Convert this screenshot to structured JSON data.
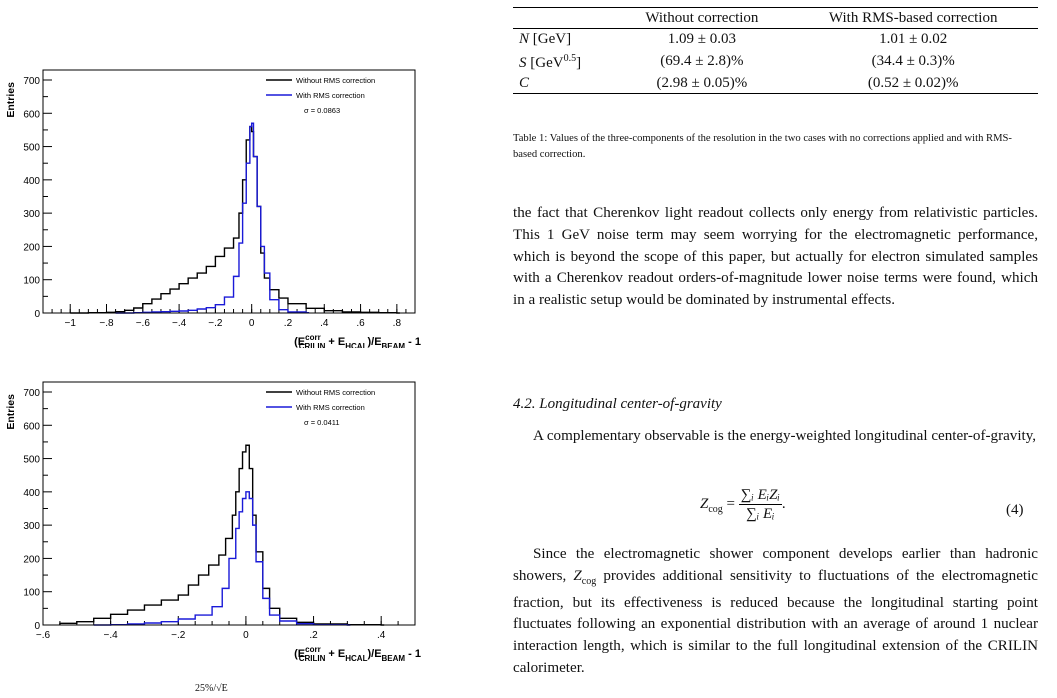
{
  "plots": [
    {
      "ylabel": "Entries",
      "xlabel_parts": [
        "(E",
        "corr",
        "CRILIN",
        " + E",
        "HCAL",
        ")/E",
        "BEAM",
        " - 1"
      ],
      "legend": [
        "Without RMS correction",
        "With RMS correction",
        "σ = 0.0863"
      ],
      "colors": {
        "without": "#000000",
        "with": "#1a1ad8"
      }
    },
    {
      "ylabel": "Entries",
      "xlabel_parts": [
        "(E",
        "corr",
        "CRILIN",
        " + E",
        "HCAL",
        ")/E",
        "BEAM",
        " - 1"
      ],
      "legend": [
        "Without RMS correction",
        "With RMS correction",
        "σ = 0.0411"
      ],
      "colors": {
        "without": "#000000",
        "with": "#1a1ad8"
      }
    }
  ],
  "chart_data": [
    {
      "type": "histogram",
      "xlabel": "(E^corr_CRILIN + E_HCAL)/E_BEAM - 1",
      "ylabel": "Entries",
      "xlim": [
        -1.15,
        0.9
      ],
      "ylim": [
        0,
        730
      ],
      "x_ticks": [
        -1,
        -0.8,
        -0.6,
        -0.4,
        -0.2,
        0,
        0.2,
        0.4,
        0.6,
        0.8
      ],
      "y_ticks": [
        0,
        100,
        200,
        300,
        400,
        500,
        600,
        700
      ],
      "legend": "top-right",
      "annotation": "σ = 0.0863",
      "series": [
        {
          "name": "Without RMS correction",
          "x": [
            -1.0,
            -0.9,
            -0.8,
            -0.75,
            -0.7,
            -0.65,
            -0.6,
            -0.55,
            -0.5,
            -0.45,
            -0.4,
            -0.35,
            -0.3,
            -0.25,
            -0.2,
            -0.15,
            -0.1,
            -0.07,
            -0.05,
            -0.03,
            -0.01,
            0.0,
            0.01,
            0.03,
            0.05,
            0.07,
            0.1,
            0.15,
            0.2,
            0.3,
            0.4,
            0.5,
            0.6,
            0.7,
            0.8
          ],
          "y": [
            0,
            1,
            2,
            4,
            8,
            15,
            28,
            42,
            58,
            72,
            88,
            105,
            120,
            140,
            170,
            195,
            225,
            300,
            400,
            520,
            560,
            545,
            470,
            320,
            180,
            105,
            70,
            45,
            28,
            14,
            7,
            3,
            2,
            1,
            0
          ]
        },
        {
          "name": "With RMS correction",
          "x": [
            -0.75,
            -0.7,
            -0.65,
            -0.6,
            -0.55,
            -0.5,
            -0.45,
            -0.4,
            -0.35,
            -0.3,
            -0.25,
            -0.2,
            -0.15,
            -0.1,
            -0.07,
            -0.05,
            -0.03,
            -0.01,
            0.0,
            0.01,
            0.03,
            0.05,
            0.07,
            0.1,
            0.15,
            0.2,
            0.3
          ],
          "y": [
            0,
            0,
            1,
            2,
            3,
            4,
            5,
            6,
            8,
            12,
            16,
            25,
            48,
            110,
            210,
            330,
            450,
            560,
            570,
            470,
            320,
            200,
            120,
            40,
            10,
            3,
            1
          ]
        }
      ]
    },
    {
      "type": "histogram",
      "xlabel": "(E^corr_CRILIN + E_HCAL)/E_BEAM - 1",
      "ylabel": "Entries",
      "xlim": [
        -0.6,
        0.5
      ],
      "ylim": [
        0,
        730
      ],
      "x_ticks": [
        -0.6,
        -0.4,
        -0.2,
        0,
        0.2,
        0.4
      ],
      "y_ticks": [
        0,
        100,
        200,
        300,
        400,
        500,
        600,
        700
      ],
      "legend": "top-right",
      "annotation": "σ = 0.0411",
      "series": [
        {
          "name": "Without RMS correction",
          "x": [
            -0.55,
            -0.5,
            -0.45,
            -0.4,
            -0.35,
            -0.3,
            -0.25,
            -0.2,
            -0.17,
            -0.14,
            -0.11,
            -0.08,
            -0.06,
            -0.04,
            -0.03,
            -0.02,
            -0.01,
            0.0,
            0.01,
            0.02,
            0.03,
            0.05,
            0.07,
            0.1,
            0.15,
            0.2,
            0.3,
            0.4
          ],
          "y": [
            5,
            10,
            20,
            32,
            45,
            60,
            75,
            90,
            120,
            150,
            180,
            210,
            260,
            330,
            400,
            470,
            520,
            540,
            470,
            330,
            220,
            110,
            50,
            20,
            8,
            3,
            1,
            0
          ]
        },
        {
          "name": "With RMS correction",
          "x": [
            -0.45,
            -0.4,
            -0.35,
            -0.3,
            -0.25,
            -0.2,
            -0.15,
            -0.1,
            -0.07,
            -0.05,
            -0.03,
            -0.02,
            -0.01,
            0.0,
            0.01,
            0.02,
            0.03,
            0.05,
            0.07,
            0.1,
            0.15,
            0.2,
            0.3
          ],
          "y": [
            0,
            1,
            3,
            6,
            10,
            18,
            30,
            55,
            110,
            200,
            290,
            340,
            380,
            400,
            380,
            300,
            190,
            80,
            30,
            12,
            4,
            1,
            0
          ]
        }
      ]
    }
  ],
  "left_fragment": "25%/√E",
  "table": {
    "headers": [
      "",
      "Without correction",
      "With RMS-based correction"
    ],
    "rows": [
      {
        "sym": "N",
        "unit": "[GeV]",
        "sup": "",
        "unit_end": "",
        "without": "1.09 ± 0.03",
        "with": "1.01 ± 0.02"
      },
      {
        "sym": "S",
        "unit": "[GeV",
        "sup": "0.5",
        "unit_end": "]",
        "without": "(69.4 ± 2.8)%",
        "with": "(34.4 ± 0.3)%"
      },
      {
        "sym": "C",
        "unit": "",
        "sup": "",
        "unit_end": "",
        "without": "(2.98 ± 0.05)%",
        "with": "(0.52 ± 0.02)%"
      }
    ]
  },
  "caption": "Table 1: Values of the three-components of the resolution in the two cases with no corrections applied and with RMS-based correction.",
  "paragraph1": "the fact that Cherenkov light readout collects only energy from relativistic particles. This 1 GeV noise term may seem worrying for the electromagnetic performance, which is beyond the scope of this paper, but actually for electron simulated samples with a Cherenkov readout orders-of-magnitude lower noise terms were found, which in a realistic setup would be dominated by instrumental effects.",
  "section_heading": "4.2. Longitudinal center-of-gravity",
  "paragraph2": "A complementary observable is the energy-weighted longitudinal center-of-gravity,",
  "equation": {
    "lhs": "Z",
    "lhs_sub": "cog",
    "num": "∑ᵢ EᵢZᵢ",
    "den": "∑ᵢ Eᵢ",
    "number": "(4)"
  },
  "paragraph3_start": "Since the electromagnetic shower component develops earlier than hadronic showers, ",
  "paragraph3_sym": "Z",
  "paragraph3_sub": "cog",
  "paragraph3_end": " provides additional sensitivity to fluctuations of the electromagnetic fraction, but its effectiveness is reduced because the longitudinal starting point fluctuates following an exponential distribution with an average of around 1 nuclear interaction length, which is similar to the full longitudinal extension of the CRILIN calorimeter."
}
